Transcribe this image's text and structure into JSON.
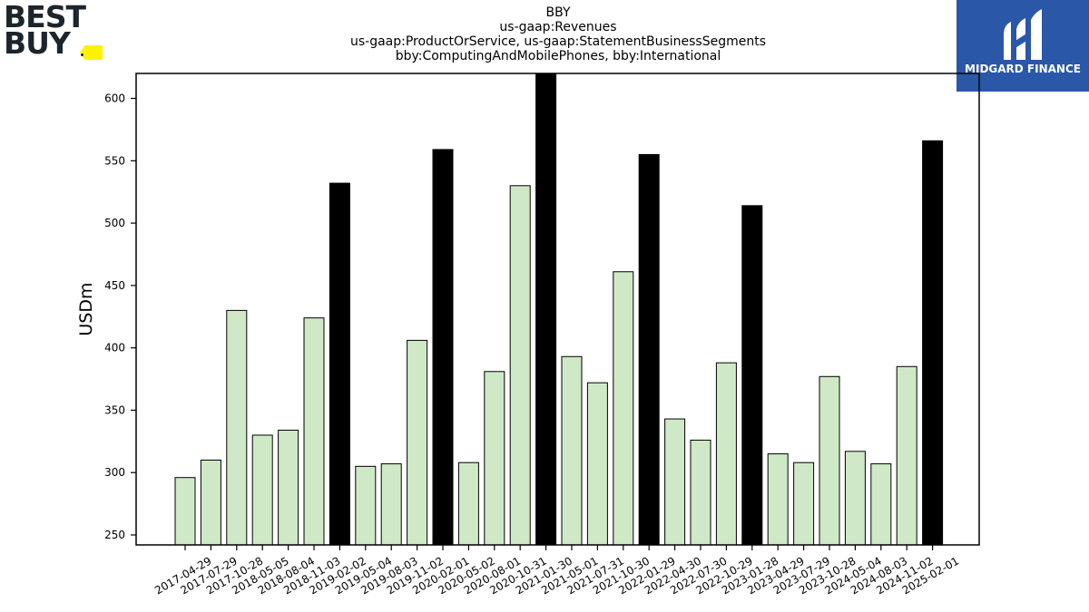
{
  "logos": {
    "left_text_line1": "BEST",
    "left_text_line2": "BUY",
    "right_text": "MIDGARD FINANCE"
  },
  "chart_data": {
    "type": "bar",
    "title_lines": [
      "BBY",
      "us-gaap:Revenues",
      "us-gaap:ProductOrService, us-gaap:StatementBusinessSegments",
      "bby:ComputingAndMobilePhones, bby:International"
    ],
    "xlabel": "",
    "ylabel": "USDm",
    "ylim": [
      242,
      620
    ],
    "yticks": [
      250,
      300,
      350,
      400,
      450,
      500,
      550,
      600
    ],
    "grid": false,
    "colors": {
      "quarter": "#cfe9c6",
      "annual": "#000000",
      "edge": "#000000"
    },
    "categories": [
      "2017-04-29",
      "2017-07-29",
      "2017-10-28",
      "2018-05-05",
      "2018-08-04",
      "2018-11-03",
      "2019-02-02",
      "2019-05-04",
      "2019-08-03",
      "2019-11-02",
      "2020-02-01",
      "2020-05-02",
      "2020-08-01",
      "2020-10-31",
      "2021-01-30",
      "2021-05-01",
      "2021-07-31",
      "2021-10-30",
      "2022-01-29",
      "2022-04-30",
      "2022-07-30",
      "2022-10-29",
      "2023-01-28",
      "2023-04-29",
      "2023-07-29",
      "2023-10-28",
      "2024-05-04",
      "2024-08-03",
      "2024-11-02",
      "2025-02-01"
    ],
    "values": [
      296,
      310,
      430,
      330,
      334,
      424,
      532,
      305,
      307,
      406,
      559,
      308,
      381,
      530,
      620,
      393,
      372,
      461,
      555,
      343,
      326,
      388,
      514,
      315,
      308,
      377,
      317,
      307,
      385,
      566
    ],
    "annual_flags": [
      false,
      false,
      false,
      false,
      false,
      false,
      true,
      false,
      false,
      false,
      true,
      false,
      false,
      false,
      true,
      false,
      false,
      false,
      true,
      false,
      false,
      false,
      true,
      false,
      false,
      false,
      false,
      false,
      false,
      true
    ]
  }
}
